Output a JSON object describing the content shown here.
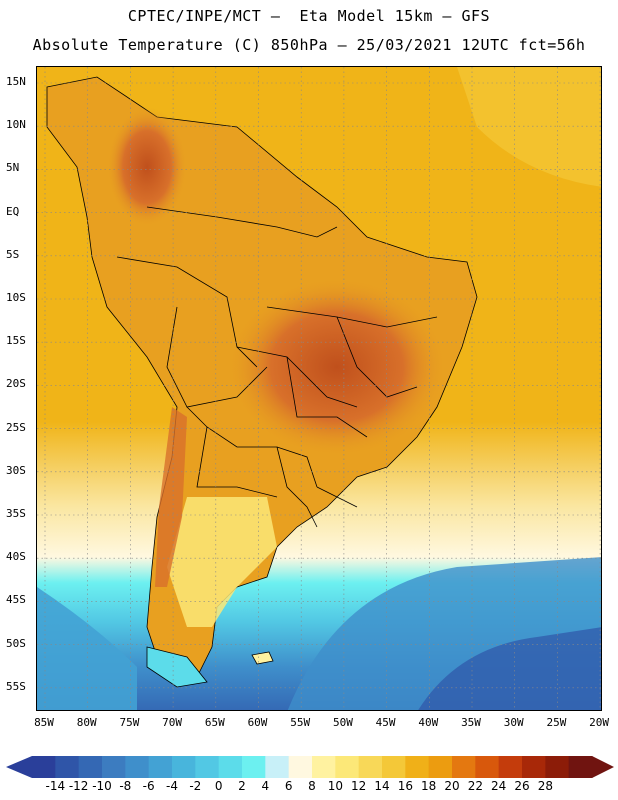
{
  "header": {
    "line1": "CPTEC/INPE/MCT –  Eta Model 15km – GFS",
    "line2": "Absolute Temperature (C) 850hPa – 25/03/2021 12UTC fct=56h"
  },
  "map": {
    "lat_labels": [
      "15N",
      "10N",
      "5N",
      "EQ",
      "5S",
      "10S",
      "15S",
      "20S",
      "25S",
      "30S",
      "35S",
      "40S",
      "45S",
      "50S",
      "55S"
    ],
    "lon_labels": [
      "85W",
      "80W",
      "75W",
      "70W",
      "65W",
      "60W",
      "55W",
      "50W",
      "45W",
      "40W",
      "35W",
      "30W",
      "25W",
      "20W"
    ],
    "region": "South America",
    "projection": "cylindrical lat-lon",
    "grid": "dotted"
  },
  "colorbar": {
    "ticks": [
      "-14",
      "-12",
      "-10",
      "-8",
      "-6",
      "-4",
      "-2",
      "0",
      "2",
      "4",
      "6",
      "8",
      "10",
      "12",
      "14",
      "16",
      "18",
      "20",
      "22",
      "24",
      "26",
      "28"
    ],
    "colors": [
      "#2a3f9a",
      "#2f55a8",
      "#3468b4",
      "#3c7cc0",
      "#3f8fcb",
      "#43a2d4",
      "#48b5dc",
      "#52c8e4",
      "#5cdcea",
      "#6cf0f0",
      "#c8f0f8",
      "#fff8e0",
      "#fff2a0",
      "#fce878",
      "#f8d858",
      "#f4c838",
      "#f0b018",
      "#ec9c10",
      "#e47810",
      "#d8580c",
      "#c43c0c",
      "#a82808",
      "#8c1c08",
      "#701410"
    ],
    "units": "C"
  },
  "colors": {
    "land_warm": "#e8a020",
    "land_hot": "#d8702a",
    "ocean_north": "#f0b418",
    "ocean_south_cold": "#42a8d8",
    "border": "#000000"
  }
}
